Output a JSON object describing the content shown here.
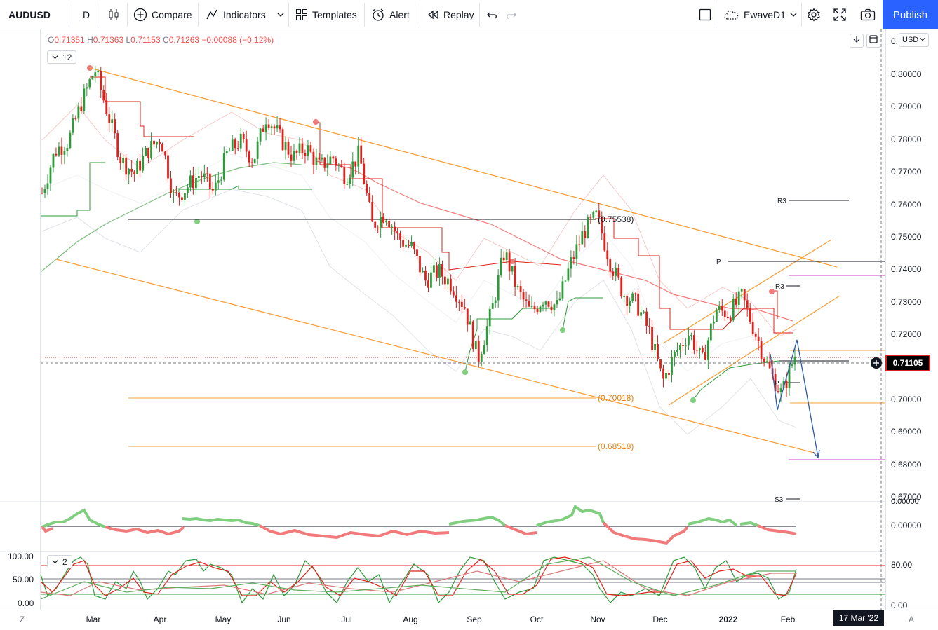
{
  "toolbar": {
    "symbol": "AUDUSD",
    "interval": "D",
    "compare": "Compare",
    "indicators": "Indicators",
    "templates": "Templates",
    "alert": "Alert",
    "replay": "Replay",
    "layout_name": "EwaveD1",
    "publish": "Publish"
  },
  "legend": {
    "o_key": "O",
    "o_val": "0.71351",
    "h_key": "H",
    "h_val": "0.71363",
    "l_key": "L",
    "l_val": "0.71153",
    "c_key": "C",
    "c_val": "0.71263",
    "change": "−0.00088 (−0.12%)",
    "indicator_count": "12",
    "pane3_count": "2"
  },
  "price_scale": {
    "currency": "USD",
    "ticks": [
      "0.80000",
      "0.79000",
      "0.78000",
      "0.77000",
      "0.76000",
      "0.75000",
      "0.74000",
      "0.73000",
      "0.72000",
      "0.71000",
      "0.70000",
      "0.69000",
      "0.68000",
      "0.67000"
    ],
    "top_partial": "0.",
    "last_price": "0.71105",
    "pane2_ticks": [
      "0.00000",
      "0.00000"
    ],
    "pane3_right": [
      "80.00",
      "0.00"
    ],
    "pane3_left": [
      "100.00",
      "50.00",
      "0.00"
    ]
  },
  "time_scale": {
    "labels": [
      "Mar",
      "Apr",
      "May",
      "Jun",
      "Jul",
      "Aug",
      "Sep",
      "Oct",
      "Nov",
      "Dec",
      "2022",
      "Jan",
      "Feb"
    ],
    "crosshair_date": "17 Mar '22",
    "left_btn": "Z",
    "right_btn": "A"
  },
  "annotations": {
    "fib1": "(0.75538)",
    "fib2": "(0.70018)",
    "fib3": "(0.68518)",
    "pivot_r3_a": "R3",
    "pivot_p_a": "P",
    "pivot_r3_b": "R3",
    "pivot_p_b": "P",
    "pivot_s3": "S3"
  },
  "colors": {
    "up": "#26a69a",
    "down": "#ef5350",
    "candle_up": "#2e9b3a",
    "candle_down": "#e0201b",
    "channel": "#f6a03c",
    "accent": "#2962ff"
  },
  "chart_data": {
    "type": "candlestick",
    "symbol": "AUDUSD",
    "interval": "D",
    "ylim": [
      0.665,
      0.805
    ],
    "key_levels": [
      0.75538,
      0.70018,
      0.68518
    ],
    "path": [
      [
        "Feb",
        0.762
      ],
      [
        "Feb",
        0.775
      ],
      [
        "Feb",
        0.778
      ],
      [
        "Feb",
        0.79
      ],
      [
        "Feb",
        0.8
      ],
      [
        "Mar",
        0.786
      ],
      [
        "Mar",
        0.772
      ],
      [
        "Mar",
        0.768
      ],
      [
        "Mar",
        0.775
      ],
      [
        "Mar",
        0.779
      ],
      [
        "Apr",
        0.76
      ],
      [
        "Apr",
        0.764
      ],
      [
        "Apr",
        0.768
      ],
      [
        "Apr",
        0.762
      ],
      [
        "May",
        0.774
      ],
      [
        "May",
        0.778
      ],
      [
        "May",
        0.772
      ],
      [
        "May",
        0.786
      ],
      [
        "May",
        0.779
      ],
      [
        "May",
        0.773
      ],
      [
        "Jun",
        0.776
      ],
      [
        "Jun",
        0.77
      ],
      [
        "Jun",
        0.773
      ],
      [
        "Jun",
        0.767
      ],
      [
        "Jun",
        0.774
      ],
      [
        "Jul",
        0.752
      ],
      [
        "Jul",
        0.756
      ],
      [
        "Jul",
        0.748
      ],
      [
        "Jul",
        0.745
      ],
      [
        "Aug",
        0.735
      ],
      [
        "Aug",
        0.738
      ],
      [
        "Aug",
        0.734
      ],
      [
        "Aug",
        0.727
      ],
      [
        "Aug",
        0.711
      ],
      [
        "Sep",
        0.725
      ],
      [
        "Sep",
        0.744
      ],
      [
        "Sep",
        0.732
      ],
      [
        "Sep",
        0.725
      ],
      [
        "Oct",
        0.73
      ],
      [
        "Oct",
        0.727
      ],
      [
        "Oct",
        0.74
      ],
      [
        "Oct",
        0.75
      ],
      [
        "Oct",
        0.755
      ],
      [
        "Nov",
        0.741
      ],
      [
        "Nov",
        0.731
      ],
      [
        "Nov",
        0.728
      ],
      [
        "Nov",
        0.719
      ],
      [
        "Dec",
        0.704
      ],
      [
        "Dec",
        0.713
      ],
      [
        "Dec",
        0.719
      ],
      [
        "Dec",
        0.71
      ],
      [
        "Jan",
        0.726
      ],
      [
        "Jan",
        0.725
      ],
      [
        "Jan",
        0.73
      ],
      [
        "Jan",
        0.719
      ],
      [
        "Jan",
        0.708
      ],
      [
        "Feb",
        0.7
      ],
      [
        "Feb",
        0.712
      ]
    ],
    "last": 0.71105
  }
}
